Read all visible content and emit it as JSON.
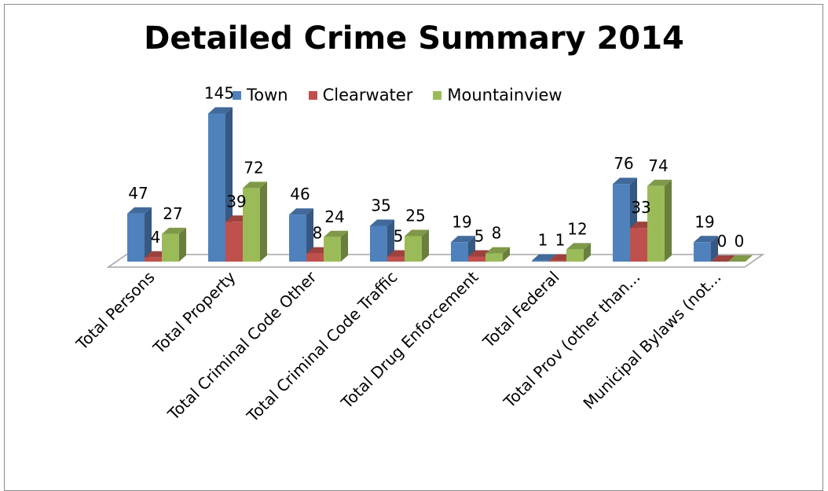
{
  "chart_data": {
    "type": "bar",
    "title": "Detailed Crime Summary 2014",
    "categories": [
      "Total Persons",
      "Total Property",
      "Total Criminal Code Other",
      "Total Criminal Code Traffic",
      "Total Drug Enforcement",
      "Total Federal",
      "Total Prov (other than...",
      "Municipal Bylaws (not..."
    ],
    "series": [
      {
        "name": "Town",
        "values": [
          47,
          145,
          46,
          35,
          19,
          1,
          76,
          19
        ]
      },
      {
        "name": "Clearwater",
        "values": [
          4,
          39,
          8,
          5,
          5,
          1,
          33,
          0
        ]
      },
      {
        "name": "Mountainview",
        "values": [
          27,
          72,
          24,
          25,
          8,
          12,
          74,
          0
        ]
      }
    ],
    "colors": [
      "#4f81bd",
      "#c0504d",
      "#9bbb59"
    ],
    "legend_position": "top",
    "three_d": true,
    "data_labels": true
  }
}
